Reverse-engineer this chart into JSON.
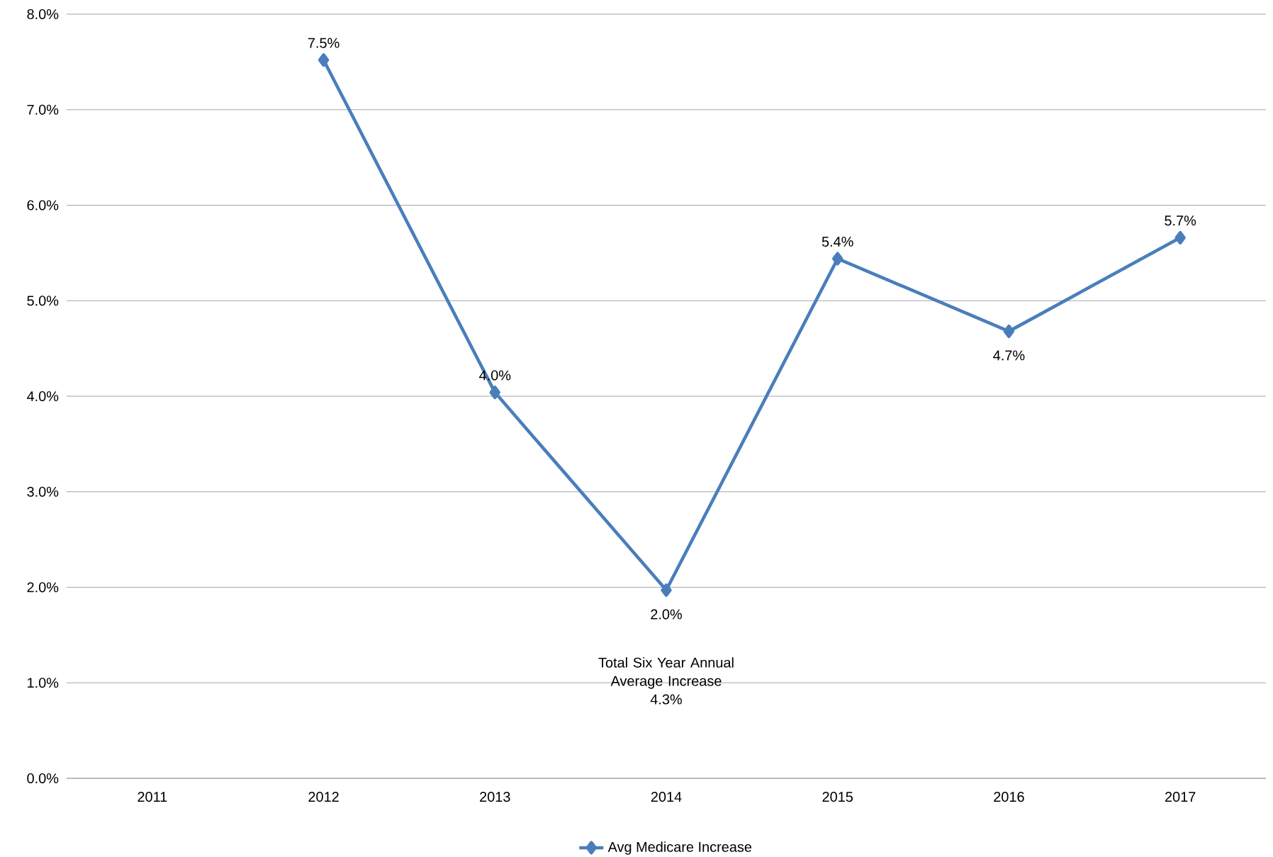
{
  "chart_data": {
    "type": "line",
    "categories": [
      "2011",
      "2012",
      "2013",
      "2014",
      "2015",
      "2016",
      "2017"
    ],
    "series": [
      {
        "name": "Avg Medicare Increase",
        "color": "#4a7ebb",
        "values": [
          null,
          7.52,
          4.04,
          1.97,
          5.44,
          4.68,
          5.66
        ],
        "value_labels": [
          null,
          "7.5%",
          "4.0%",
          "2.0%",
          "5.4%",
          "4.7%",
          "5.7%"
        ]
      }
    ],
    "ylim": [
      0,
      8
    ],
    "yticks": [
      {
        "value": 0,
        "label": "0.0%"
      },
      {
        "value": 1,
        "label": "1.0%"
      },
      {
        "value": 2,
        "label": "2.0%"
      },
      {
        "value": 3,
        "label": "3.0%"
      },
      {
        "value": 4,
        "label": "4.0%"
      },
      {
        "value": 5,
        "label": "5.0%"
      },
      {
        "value": 6,
        "label": "6.0%"
      },
      {
        "value": 7,
        "label": "7.0%"
      },
      {
        "value": 8,
        "label": "8.0%"
      }
    ],
    "grid": "y",
    "legend": "bottom",
    "marker": "diamond",
    "line_style": "solid",
    "annotations": [
      "Total Six Year  Annual Average Increase",
      "4.3%"
    ]
  }
}
